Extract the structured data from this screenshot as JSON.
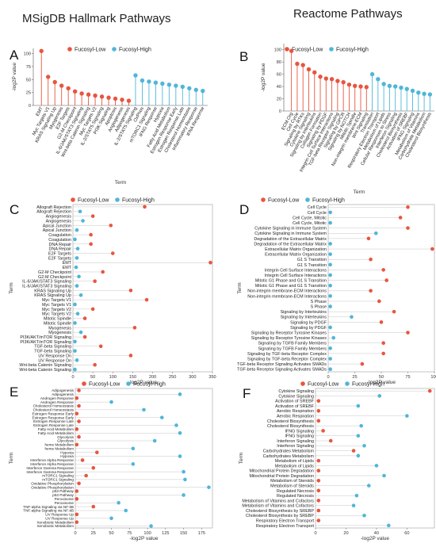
{
  "headers": {
    "left": "MSigDB Hallmark Pathways",
    "right": "Reactome Pathways"
  },
  "colors": {
    "low": "#e8553f",
    "high": "#4fb6d8"
  },
  "chart_data": [
    {
      "panel": "A",
      "type": "lollipop-vertical",
      "legend": [
        "Fucosyl-Low",
        "Fucosyl-High"
      ],
      "xlabel": "Term",
      "ylabel": "-log2P value",
      "ylim": [
        0,
        110
      ],
      "yticks": [
        0,
        25,
        50,
        75,
        100
      ],
      "categories": [
        "EMT",
        "Myc Targets V1",
        "KRAS Signaling Up",
        "Myogenesis",
        "E2F Targets",
        "G2-M Checkpoint",
        "IL-6/JAK/STAT3 Signaling",
        "Wnt-beta Catenin Signaling",
        "Myc Targets V2",
        "IL-2/STAT5 Signaling",
        "PI3K Signaling",
        "Apoptosis",
        "Angiogenesis",
        "Adipogenesis",
        "IL-2/STAT5 Signaling",
        "OxPhos",
        "mTORC1 Signaling",
        "IFNG Response",
        "Hypoxia",
        "Fatty Acid Metabolism",
        "Estrogen Response Early",
        "Estrogen Response Late",
        "Cholesterol Homeostasis",
        "Inflammatory Response",
        "IFNA Response"
      ],
      "group": [
        "low",
        "low",
        "low",
        "low",
        "low",
        "low",
        "low",
        "low",
        "low",
        "low",
        "low",
        "low",
        "low",
        "low",
        "high",
        "high",
        "high",
        "high",
        "high",
        "high",
        "high",
        "high",
        "high",
        "high",
        "high"
      ],
      "values": [
        105,
        55,
        45,
        38,
        33,
        27,
        23,
        21,
        19,
        17,
        15,
        13,
        11,
        9,
        58,
        48,
        46,
        44,
        42,
        40,
        38,
        36,
        33,
        30,
        28
      ]
    },
    {
      "panel": "B",
      "type": "lollipop-vertical",
      "legend": [
        "Fucosyl-Low",
        "Fucosyl-High"
      ],
      "xlabel": "Term",
      "ylabel": "-log2P value",
      "ylim": [
        0,
        110
      ],
      "yticks": [
        0,
        20,
        40,
        60,
        80,
        100
      ],
      "categories": [
        "ECM Org",
        "Cell Cycle",
        "Signaling by RTKs",
        "Cytokine Signaling",
        "Signaling by Interleukins",
        "Collagen Formation",
        "Signaling by PDGF",
        "Integrin Cell Surface Interactions",
        "TGF-beta Receptor Signaling",
        "Signaling by GPCR",
        "Signaling by NOTCH",
        "Mitotic Spindle",
        "Non-integrin membrane-ECM",
        "Wnt Signaling",
        "Translation",
        "Respiratory Electron Transport",
        "Metabolism of Lipids",
        "Cellular Responses to Stress",
        "Interferon Signaling",
        "Cholesterol Biosynthesis",
        "Activation of SREBF",
        "IFNG Signaling",
        "Metabolism of Vitamins",
        "Carbohydrate Metabolism",
        "Cholesterol Biosynthesis"
      ],
      "group": [
        "low",
        "low",
        "low",
        "low",
        "low",
        "low",
        "low",
        "low",
        "low",
        "low",
        "low",
        "low",
        "low",
        "low",
        "high",
        "high",
        "high",
        "high",
        "high",
        "high",
        "high",
        "high",
        "high",
        "high",
        "high"
      ],
      "values": [
        98,
        77,
        75,
        68,
        63,
        56,
        53,
        52,
        49,
        47,
        43,
        41,
        40,
        39,
        60,
        52,
        44,
        41,
        40,
        38,
        36,
        33,
        30,
        28,
        27
      ]
    },
    {
      "panel": "C",
      "type": "lollipop-horizontal",
      "legend": [
        "Fucosyl-Low",
        "Fucosyl-High"
      ],
      "xlabel": "-log2P value",
      "ylabel": "Term",
      "xlim": [
        0,
        350
      ],
      "xticks": [
        0,
        50,
        100,
        150,
        200,
        250,
        300,
        350
      ],
      "categories": [
        "Allograft Rejection",
        "Allograft Rejection",
        "Angiogenesis",
        "Angiogenesis",
        "Apical Junction",
        "Apical Junction",
        "Coagulation",
        "Coagulation",
        "DNA Repair",
        "DNA Repair",
        "E2F Targets",
        "E2F Targets",
        "EMT",
        "EMT",
        "G2-M Checkpoint",
        "G2-M Checkpoint",
        "IL-6/JAK/STAT3 Signaling",
        "IL-6/JAK/STAT3 Signaling",
        "KRAS Signaling Up",
        "KRAS Signaling Up",
        "Myc Targets V1",
        "Myc Targets V1",
        "Myc Targets V2",
        "Myc Targets V2",
        "Mitotic Spindle",
        "Mitotic Spindle",
        "Myogenesis",
        "Myogenesis",
        "PI3K/AKT/mTOR Signaling",
        "PI3K/AKT/mTOR Signaling",
        "TGF-beta Signaling",
        "TGF-beta Signaling",
        "UV Response Dn",
        "UV Response Dn",
        "Wnt-beta Catenin Signaling",
        "Wnt-beta Catenin Signaling"
      ],
      "group": [
        "low",
        "high",
        "low",
        "high",
        "low",
        "high",
        "low",
        "high",
        "low",
        "high",
        "low",
        "high",
        "low",
        "high",
        "low",
        "high",
        "low",
        "high",
        "low",
        "high",
        "low",
        "high",
        "low",
        "high",
        "low",
        "high",
        "low",
        "high",
        "low",
        "high",
        "low",
        "high",
        "low",
        "high",
        "low",
        "high"
      ],
      "values": [
        180,
        18,
        50,
        25,
        95,
        10,
        45,
        5,
        45,
        12,
        100,
        10,
        345,
        8,
        75,
        15,
        55,
        10,
        145,
        20,
        185,
        5,
        50,
        12,
        30,
        5,
        155,
        20,
        30,
        5,
        70,
        5,
        145,
        10,
        55,
        5
      ]
    },
    {
      "panel": "D",
      "type": "lollipop-horizontal",
      "legend": [
        "Fucosyl-Low",
        "Fucosyl-High"
      ],
      "xlabel": "-log2P value",
      "ylabel": "Term",
      "xlim": [
        0,
        100
      ],
      "xticks": [
        0,
        25,
        50,
        75,
        100
      ],
      "categories": [
        "Cell Cycle",
        "Cell Cycle",
        "Cell Cycle, Mitotic",
        "Cell Cycle, Mitotic",
        "Cytokine Signaling in Immune System",
        "Cytokine Signaling in Immune System",
        "Degradation of the Extracellular Matrix",
        "Degradation of the Extracellular Matrix",
        "Extracellular Matrix Organization",
        "Extracellular Matrix Organization",
        "G1 S Transition",
        "G1 S Transition",
        "Integrin Cell Surface Interactions",
        "Integrin Cell Surface Interactions",
        "Mitotic G1 Phase and G1 S Transition",
        "Mitotic G1 Phase and G1 S Transition",
        "Non-integrin membrane-ECM Interactions",
        "Non-integrin membrane-ECM Interactions",
        "S Phase",
        "S Phase",
        "Signaling by Interleukins",
        "Signaling by Interleukins",
        "Signaling by PDGF",
        "Signaling by PDGF",
        "Signaling by Receptor Tyrosine Kinases",
        "Signaling by Receptor Tyrosine Kinases",
        "Signaling by TGFB Family Members",
        "Signaling by TGFB Family Members",
        "Signaling by TGF-beta Receptor Complex",
        "Signaling by TGF-beta Receptor Complex",
        "TGF-beta Receptor Signaling Activates SMADs",
        "TGF-beta Receptor Signaling Activates SMADs"
      ],
      "group": [
        "low",
        "high",
        "low",
        "high",
        "low",
        "high",
        "low",
        "high",
        "low",
        "high",
        "low",
        "high",
        "low",
        "high",
        "low",
        "high",
        "low",
        "high",
        "low",
        "high",
        "low",
        "high",
        "low",
        "high",
        "low",
        "high",
        "low",
        "high",
        "low",
        "high",
        "low",
        "high"
      ],
      "values": [
        75,
        2,
        68,
        2,
        75,
        45,
        38,
        2,
        98,
        2,
        40,
        2,
        52,
        2,
        55,
        2,
        40,
        2,
        48,
        2,
        62,
        22,
        50,
        2,
        75,
        5,
        52,
        2,
        52,
        2,
        32,
        2
      ]
    },
    {
      "panel": "E",
      "type": "lollipop-horizontal",
      "legend": [
        "Fucosyl-Low",
        "Fucosyl-High"
      ],
      "xlabel": "-log2P value",
      "ylabel": "Term",
      "xlim": [
        0,
        190
      ],
      "xticks": [
        0,
        25,
        50,
        75,
        100,
        125,
        150,
        175
      ],
      "categories": [
        "Adipogenesis",
        "Adipogenesis",
        "Androgen Response",
        "Androgen Response",
        "Cholesterol Homeostasis",
        "Cholesterol Homeostasis",
        "Estrogen Response Early",
        "Estrogen Response Early",
        "Estrogen Response Late",
        "Estrogen Response Late",
        "Fatty Acid Metabolism",
        "Fatty Acid Metabolism",
        "Glycolysis",
        "Glycolysis",
        "heme Metabolism",
        "heme Metabolism",
        "Hypoxia",
        "Hypoxia",
        "Interferon Alpha Response",
        "Interferon Alpha Response",
        "Interferon Gamma Response",
        "Interferon Gamma Response",
        "mTORC1 Signaling",
        "mTORC1 Signaling",
        "Oxidative Phosphorylation",
        "Oxidative Phosphorylation",
        "p53 Pathway",
        "p53 Pathway",
        "Peroxisome",
        "Peroxisome",
        "TNF-alpha Signaling via NF-kB",
        "TNF-alpha Signaling via NF-kB",
        "UV Response Up",
        "UV Response Up",
        "Xenobiotic Metabolism",
        "Xenobiotic Metabolism"
      ],
      "group": [
        "low",
        "high",
        "low",
        "high",
        "low",
        "high",
        "low",
        "high",
        "low",
        "high",
        "low",
        "high",
        "low",
        "high",
        "low",
        "high",
        "low",
        "high",
        "low",
        "high",
        "low",
        "high",
        "low",
        "high",
        "low",
        "high",
        "low",
        "high",
        "low",
        "high",
        "low",
        "high",
        "low",
        "high",
        "low",
        "high"
      ],
      "values": [
        5,
        145,
        2,
        50,
        5,
        95,
        2,
        120,
        5,
        140,
        2,
        145,
        5,
        110,
        2,
        80,
        30,
        145,
        10,
        80,
        25,
        150,
        15,
        152,
        5,
        185,
        2,
        150,
        2,
        60,
        25,
        70,
        2,
        50,
        2,
        105
      ]
    },
    {
      "panel": "F",
      "type": "lollipop-horizontal",
      "legend": [
        "Fucosyl-Low",
        "Fucosyl-High"
      ],
      "xlabel": "-log2P value",
      "ylabel": "Term",
      "xlim": [
        0,
        78
      ],
      "xticks": [
        0,
        20,
        40,
        60
      ],
      "categories": [
        "Cytokine Signaling",
        "Cytokine Signaling",
        "Activation of SREBF",
        "Activation of SREBF",
        "Aerobic Respiration",
        "Aerobic Respiration",
        "Cholesterol Biosynthesis",
        "Cholesterol Biosynthesis",
        "IFNG Signaling",
        "IFNG Signaling",
        "Interferon Signaling",
        "Interferon Signaling",
        "Carbohydrates Metabolism",
        "Carbohydrates Metabolism",
        "Metabolism of Lipids",
        "Metabolism of Lipids",
        "Mitochondrial Protein Degradation",
        "Mitochondrial Protein Degradation",
        "Metabolism of Steroids",
        "Metabolism of Steroids",
        "Regulated Necrosis",
        "Regulated Necrosis",
        "Metabolism of Vitamins and Cofactors",
        "Metabolism of Vitamins and Cofactors",
        "Cholesterol Biosynthesis by SREBP",
        "Cholesterol Biosynthesis by SREBP",
        "Respiratory Electron Transport",
        "Respiratory Electron Transport"
      ],
      "group": [
        "low",
        "high",
        "low",
        "high",
        "low",
        "high",
        "low",
        "high",
        "low",
        "high",
        "low",
        "high",
        "low",
        "high",
        "low",
        "high",
        "low",
        "high",
        "low",
        "high",
        "low",
        "high",
        "low",
        "high",
        "low",
        "high",
        "low",
        "high"
      ],
      "values": [
        75,
        42,
        2,
        28,
        2,
        60,
        2,
        30,
        5,
        28,
        10,
        32,
        25,
        28,
        2,
        40,
        2,
        45,
        2,
        35,
        2,
        27,
        2,
        25,
        2,
        32,
        2,
        48
      ]
    }
  ]
}
